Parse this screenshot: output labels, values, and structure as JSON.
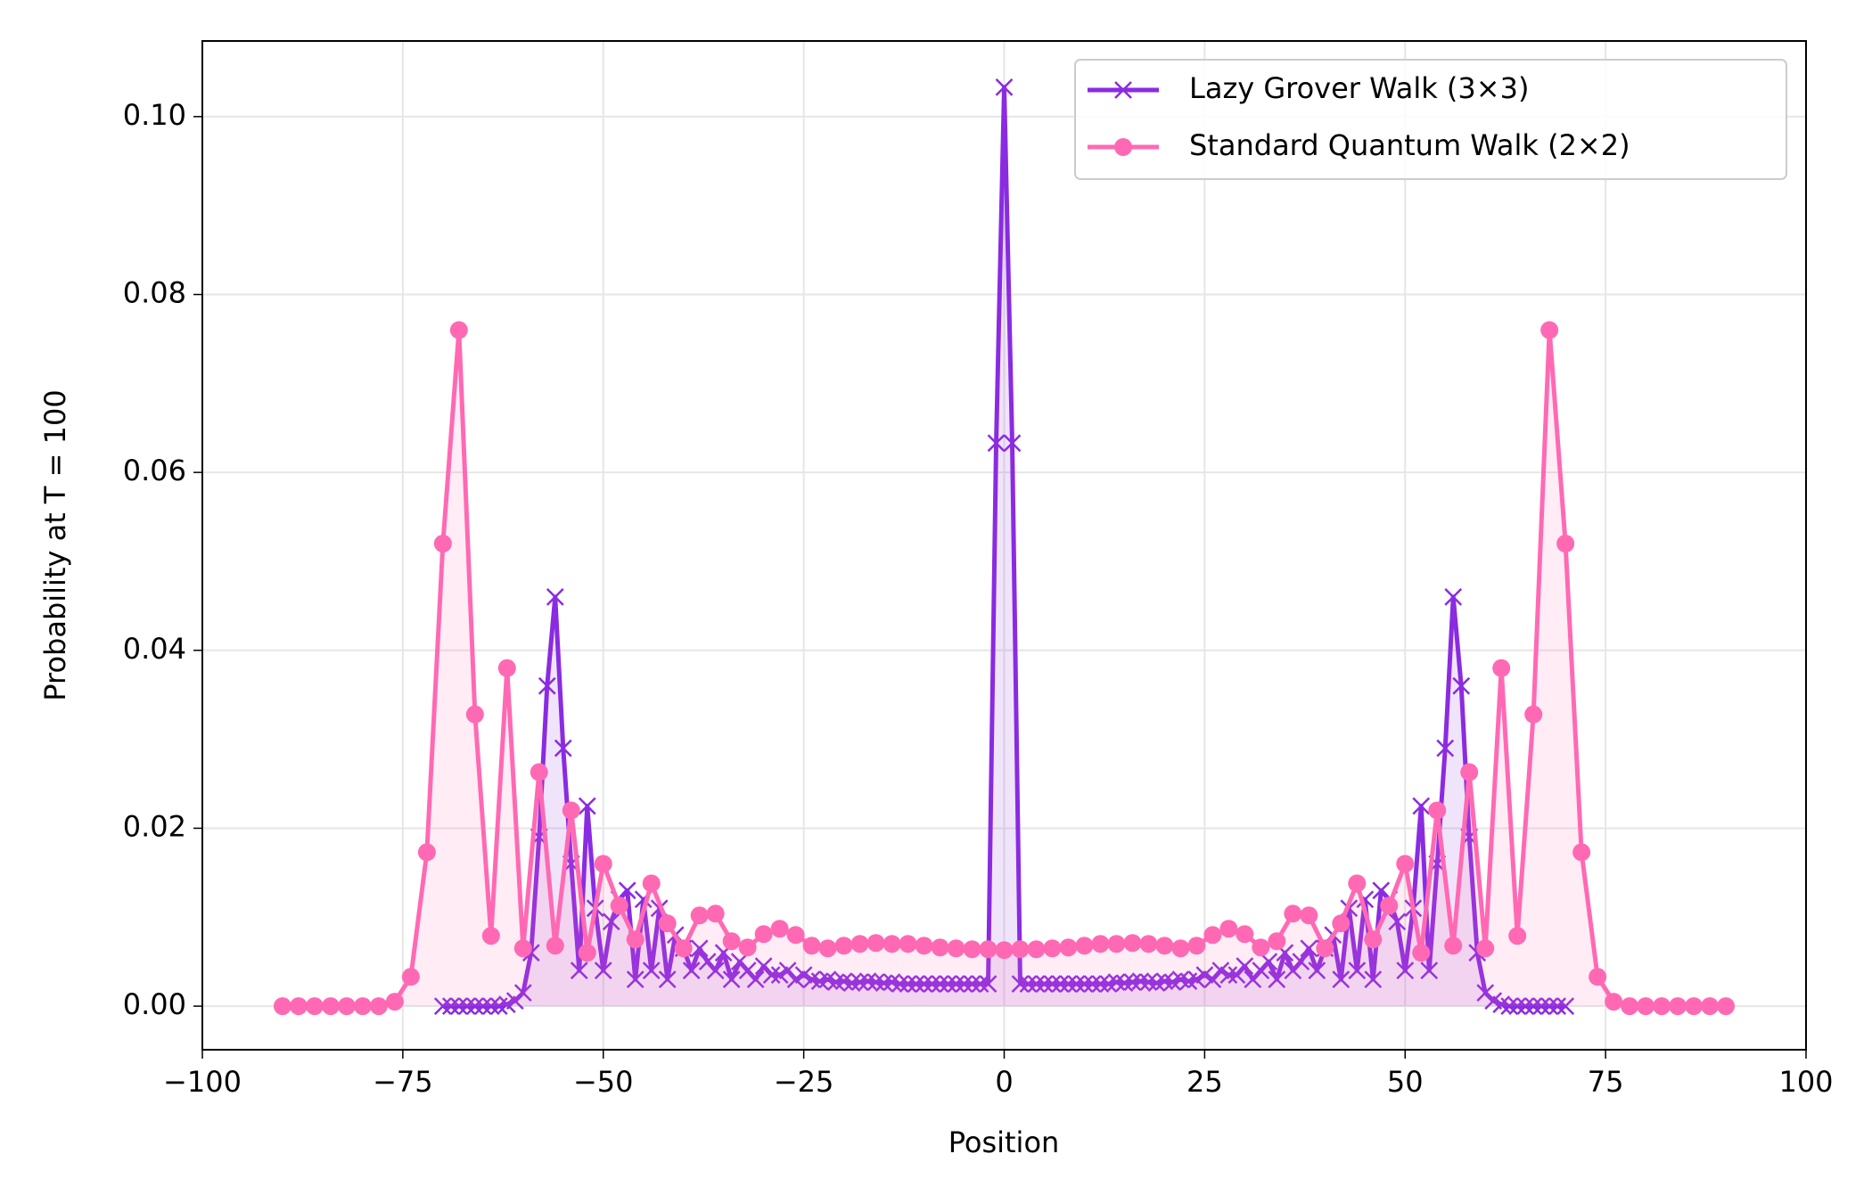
{
  "chart_data": {
    "type": "line",
    "xlabel": "Position",
    "ylabel": "Probability at T = 100",
    "xlim": [
      -100,
      100
    ],
    "ylim": [
      -0.0049,
      0.1085
    ],
    "xticks": [
      {
        "value": -100,
        "label": "−100"
      },
      {
        "value": -75,
        "label": "−75"
      },
      {
        "value": -50,
        "label": "−50"
      },
      {
        "value": -25,
        "label": "−25"
      },
      0,
      25,
      50,
      75,
      100
    ],
    "yticks": [
      {
        "value": 0,
        "label": "0.00"
      },
      {
        "value": 0.02,
        "label": "0.02"
      },
      {
        "value": 0.04,
        "label": "0.04"
      },
      {
        "value": 0.06,
        "label": "0.06"
      },
      {
        "value": 0.08,
        "label": "0.08"
      },
      {
        "value": 0.1,
        "label": "0.10"
      }
    ],
    "grid": true,
    "legend": "upper right",
    "series": [
      {
        "name": "Lazy Grover Walk (3×3)",
        "color": "#8a2be2",
        "marker": "x",
        "x": [
          -70,
          -69,
          -68,
          -67,
          -66,
          -65,
          -64,
          -63,
          -62,
          -61,
          -60,
          -59,
          -58,
          -57,
          -56,
          -55,
          -54,
          -53,
          -52,
          -51,
          -50,
          -49,
          -48,
          -47,
          -46,
          -45,
          -44,
          -43,
          -42,
          -41,
          -40,
          -39,
          -38,
          -37,
          -36,
          -35,
          -34,
          -33,
          -32,
          -31,
          -30,
          -29,
          -28,
          -27,
          -26,
          -25,
          -24,
          -23,
          -22,
          -21,
          -20,
          -19,
          -18,
          -17,
          -16,
          -15,
          -14,
          -13,
          -12,
          -11,
          -10,
          -9,
          -8,
          -7,
          -6,
          -5,
          -4,
          -3,
          -2,
          -1,
          0,
          1,
          2,
          3,
          4,
          5,
          6,
          7,
          8,
          9,
          10,
          11,
          12,
          13,
          14,
          15,
          16,
          17,
          18,
          19,
          20,
          21,
          22,
          23,
          24,
          25,
          26,
          27,
          28,
          29,
          30,
          31,
          32,
          33,
          34,
          35,
          36,
          37,
          38,
          39,
          40,
          41,
          42,
          43,
          44,
          45,
          46,
          47,
          48,
          49,
          50,
          51,
          52,
          53,
          54,
          55,
          56,
          57,
          58,
          59,
          60,
          61,
          62,
          63,
          64,
          65,
          66,
          67,
          68,
          69,
          70
        ],
        "values": [
          0,
          0,
          0,
          0,
          0,
          0,
          0,
          0,
          0.0002,
          0.0006,
          0.0015,
          0.006,
          0.019,
          0.036,
          0.046,
          0.029,
          0.016,
          0.004,
          0.0225,
          0.011,
          0.004,
          0.0095,
          0.012,
          0.013,
          0.003,
          0.012,
          0.004,
          0.011,
          0.003,
          0.008,
          0.0065,
          0.004,
          0.0065,
          0.005,
          0.004,
          0.006,
          0.003,
          0.005,
          0.004,
          0.003,
          0.0045,
          0.0035,
          0.0035,
          0.004,
          0.003,
          0.0035,
          0.003,
          0.0028,
          0.003,
          0.0027,
          0.0028,
          0.0026,
          0.0027,
          0.0028,
          0.0027,
          0.0026,
          0.0027,
          0.0025,
          0.0025,
          0.0025,
          0.0025,
          0.0025,
          0.0025,
          0.0025,
          0.0025,
          0.0025,
          0.0025,
          0.0025,
          0.0025,
          0.0633,
          0.1033,
          0.0633,
          0.0025,
          0.0025,
          0.0025,
          0.0025,
          0.0025,
          0.0025,
          0.0025,
          0.0025,
          0.0025,
          0.0025,
          0.0025,
          0.0025,
          0.0027,
          0.0026,
          0.0027,
          0.0028,
          0.0027,
          0.0026,
          0.0028,
          0.0027,
          0.003,
          0.0028,
          0.003,
          0.0035,
          0.003,
          0.004,
          0.0035,
          0.0035,
          0.0045,
          0.003,
          0.004,
          0.005,
          0.003,
          0.006,
          0.004,
          0.005,
          0.0065,
          0.004,
          0.0065,
          0.008,
          0.003,
          0.011,
          0.004,
          0.012,
          0.003,
          0.013,
          0.012,
          0.0095,
          0.004,
          0.011,
          0.0225,
          0.004,
          0.016,
          0.029,
          0.046,
          0.036,
          0.019,
          0.006,
          0.0015,
          0.0006,
          0.0002,
          0,
          0,
          0,
          0,
          0,
          0,
          0,
          0
        ]
      },
      {
        "name": "Standard Quantum Walk (2×2)",
        "color": "#ff69b4",
        "marker": "o",
        "x": [
          -90,
          -88,
          -86,
          -84,
          -82,
          -80,
          -78,
          -76,
          -74,
          -72,
          -70,
          -68,
          -66,
          -64,
          -62,
          -60,
          -58,
          -56,
          -54,
          -52,
          -50,
          -48,
          -46,
          -44,
          -42,
          -40,
          -38,
          -36,
          -34,
          -32,
          -30,
          -28,
          -26,
          -24,
          -22,
          -20,
          -18,
          -16,
          -14,
          -12,
          -10,
          -8,
          -6,
          -4,
          -2,
          0,
          2,
          4,
          6,
          8,
          10,
          12,
          14,
          16,
          18,
          20,
          22,
          24,
          26,
          28,
          30,
          32,
          34,
          36,
          38,
          40,
          42,
          44,
          46,
          48,
          50,
          52,
          54,
          56,
          58,
          60,
          62,
          64,
          66,
          68,
          70,
          72,
          74,
          76,
          78,
          80,
          82,
          84,
          86,
          88,
          90
        ],
        "values": [
          0,
          0,
          0,
          0,
          0,
          0,
          0,
          0.0005,
          0.0033,
          0.0173,
          0.052,
          0.076,
          0.0328,
          0.0079,
          0.038,
          0.0065,
          0.0263,
          0.0068,
          0.022,
          0.006,
          0.016,
          0.0113,
          0.0075,
          0.0138,
          0.0093,
          0.0065,
          0.0102,
          0.0104,
          0.0073,
          0.0066,
          0.0081,
          0.0087,
          0.008,
          0.0068,
          0.0065,
          0.0068,
          0.007,
          0.0071,
          0.007,
          0.007,
          0.0068,
          0.0066,
          0.0065,
          0.0064,
          0.0064,
          0.0063,
          0.0064,
          0.0064,
          0.0065,
          0.0066,
          0.0068,
          0.007,
          0.007,
          0.0071,
          0.007,
          0.0068,
          0.0065,
          0.0068,
          0.008,
          0.0087,
          0.0081,
          0.0066,
          0.0073,
          0.0104,
          0.0102,
          0.0065,
          0.0093,
          0.0138,
          0.0075,
          0.0113,
          0.016,
          0.006,
          0.022,
          0.0068,
          0.0263,
          0.0065,
          0.038,
          0.0079,
          0.0328,
          0.076,
          0.052,
          0.0173,
          0.0033,
          0.0005,
          0,
          0,
          0,
          0,
          0,
          0,
          0
        ]
      }
    ]
  }
}
